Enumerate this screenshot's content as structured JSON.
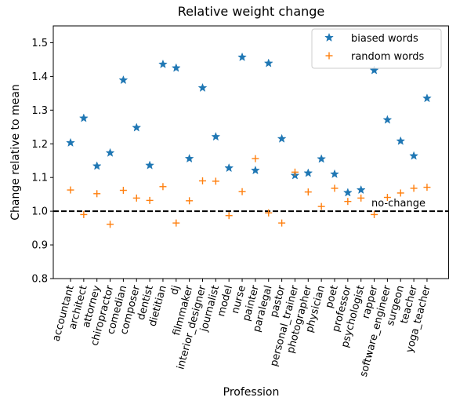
{
  "chart_data": {
    "type": "scatter",
    "title": "Relative weight change",
    "xlabel": "Profession",
    "ylabel": "Change relative to mean",
    "ylim": [
      0.8,
      1.55
    ],
    "yticks": [
      "0.8",
      "0.9",
      "1.0",
      "1.1",
      "1.2",
      "1.3",
      "1.4",
      "1.5"
    ],
    "grid": false,
    "legend_position": "top-right",
    "categories": [
      "accountant",
      "architect",
      "attorney",
      "chiropractor",
      "comedian",
      "composer",
      "dentist",
      "dietitian",
      "dj",
      "filmmaker",
      "interior_designer",
      "journalist",
      "model",
      "nurse",
      "painter",
      "paralegal",
      "pastor",
      "personal_trainer",
      "photographer",
      "physician",
      "poet",
      "professor",
      "psychologist",
      "rapper",
      "software_engineer",
      "surgeon",
      "teacher",
      "yoga_teacher"
    ],
    "series": [
      {
        "name": "biased words",
        "marker": "star",
        "color": "#1f77b4",
        "values": [
          1.203,
          1.276,
          1.134,
          1.173,
          1.389,
          1.248,
          1.136,
          1.436,
          1.425,
          1.156,
          1.366,
          1.221,
          1.128,
          1.457,
          1.121,
          1.439,
          1.215,
          1.106,
          1.113,
          1.155,
          1.11,
          1.055,
          1.063,
          1.418,
          1.271,
          1.208,
          1.164,
          1.335
        ]
      },
      {
        "name": "random words",
        "marker": "plus",
        "color": "#ff7f0e",
        "values": [
          1.063,
          0.99,
          1.052,
          0.961,
          1.062,
          1.039,
          1.032,
          1.073,
          0.965,
          1.031,
          1.09,
          1.089,
          0.987,
          1.058,
          1.156,
          0.995,
          0.965,
          1.116,
          1.057,
          1.014,
          1.068,
          1.029,
          1.039,
          0.99,
          1.041,
          1.054,
          1.068,
          1.071
        ]
      }
    ],
    "reference_line": {
      "y": 1.0,
      "style": "dashed",
      "color": "#000000",
      "label": "no-change"
    }
  }
}
